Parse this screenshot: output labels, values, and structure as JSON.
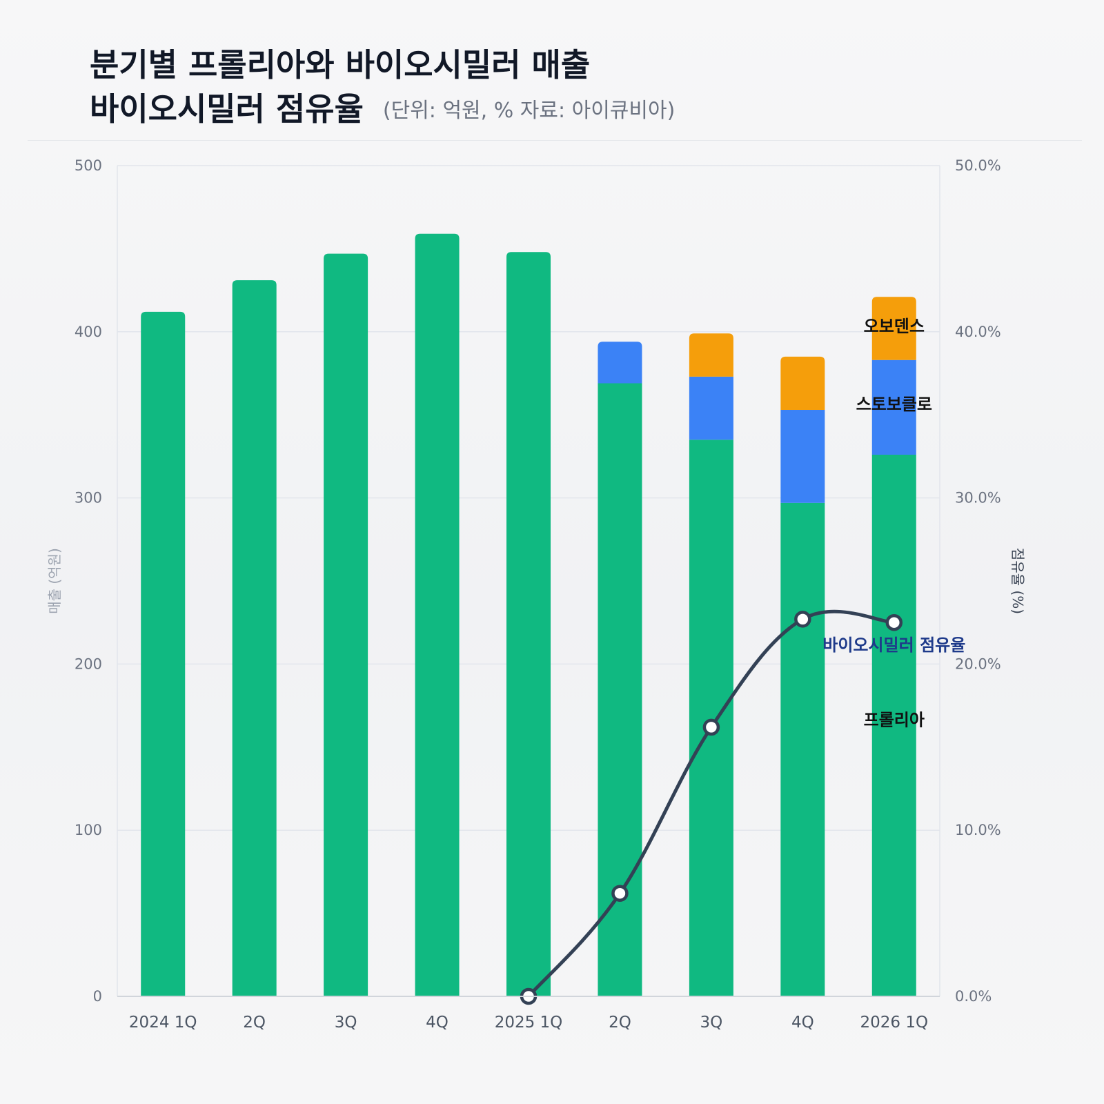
{
  "title": {
    "line1": "분기별 프롤리아와 바이오시밀러 매출",
    "line2": "바이오시밀러 점유율",
    "note": "(단위: 억원, % 자료: 아이큐비아)"
  },
  "chart_data": {
    "type": "bar",
    "stacked": true,
    "categories": [
      "2024 1Q",
      "2Q",
      "3Q",
      "4Q",
      "2025 1Q",
      "2Q",
      "3Q",
      "4Q",
      "2026 1Q"
    ],
    "series": [
      {
        "name": "프롤리아",
        "color": "#10b981",
        "values": [
          412,
          431,
          447,
          459,
          448,
          369,
          335,
          297,
          326
        ]
      },
      {
        "name": "스토보클로",
        "color": "#3b82f6",
        "values": [
          0,
          0,
          0,
          0,
          0,
          25,
          38,
          56,
          57
        ]
      },
      {
        "name": "오보덴스",
        "color": "#f59e0b",
        "values": [
          0,
          0,
          0,
          0,
          0,
          0,
          26,
          32,
          38
        ]
      }
    ],
    "line_series": {
      "name": "바이오시밀러 점유율",
      "color": "#334155",
      "axis": "right",
      "values": [
        null,
        null,
        null,
        null,
        0.0,
        6.2,
        16.2,
        22.7,
        22.5
      ]
    },
    "y_left": {
      "label": "매출 (억원)",
      "ylim": [
        0,
        500
      ],
      "ticks": [
        {
          "value": 0,
          "label": "0"
        },
        {
          "value": 100,
          "label": "100"
        },
        {
          "value": 200,
          "label": "200"
        },
        {
          "value": 300,
          "label": "300"
        },
        {
          "value": 400,
          "label": "400"
        },
        {
          "value": 500,
          "label": "500"
        }
      ]
    },
    "y_right": {
      "label": "점유율 (%)",
      "ylim": [
        0,
        50
      ],
      "ticks": [
        {
          "value": 0,
          "label": "0.0%"
        },
        {
          "value": 10,
          "label": "10.0%"
        },
        {
          "value": 20,
          "label": "20.0%"
        },
        {
          "value": 30,
          "label": "30.0%"
        },
        {
          "value": 40,
          "label": "40.0%"
        },
        {
          "value": 50,
          "label": "50.0%"
        }
      ]
    },
    "grid": true,
    "labels": [
      {
        "text": "오보덴스",
        "category": 8,
        "y": 400
      },
      {
        "text": "스토보클로",
        "category": 8,
        "y": 353
      },
      {
        "text": "프롤리아",
        "category": 8,
        "y": 163
      },
      {
        "text": "바이오시밀러 점유율",
        "category": 8,
        "y": 208
      }
    ]
  }
}
